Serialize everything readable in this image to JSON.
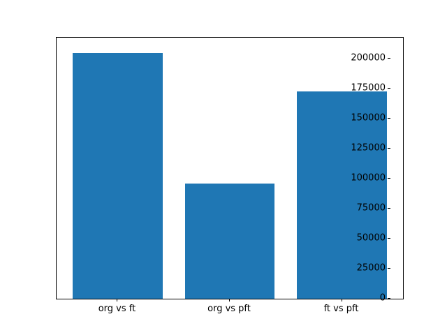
{
  "chart_data": {
    "type": "bar",
    "categories": [
      "org vs ft",
      "org vs pft",
      "ft vs pft"
    ],
    "values": [
      205000,
      96000,
      173000
    ],
    "title": "",
    "xlabel": "",
    "ylabel": "",
    "ylim": [
      0,
      217500
    ],
    "yticks": [
      0,
      25000,
      50000,
      75000,
      100000,
      125000,
      150000,
      175000,
      200000
    ],
    "bar_color": "#1f77b4",
    "axis_color": "#000000",
    "background_color": "#ffffff",
    "grid": false,
    "legend": null
  }
}
